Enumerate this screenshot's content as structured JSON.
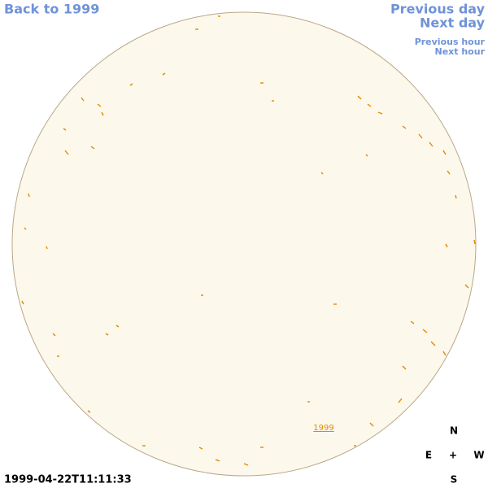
{
  "navigation": {
    "back": "Back to 1999",
    "previous_day": "Previous day",
    "next_day": "Next day",
    "previous_hour": "Previous hour",
    "next_hour": "Next hour"
  },
  "disk": {
    "link": "1999"
  },
  "compass": {
    "north": "N",
    "east": "E",
    "center": "+",
    "west": "W",
    "south": "S"
  },
  "timestamp": "1999-04-22T11:11:33"
}
